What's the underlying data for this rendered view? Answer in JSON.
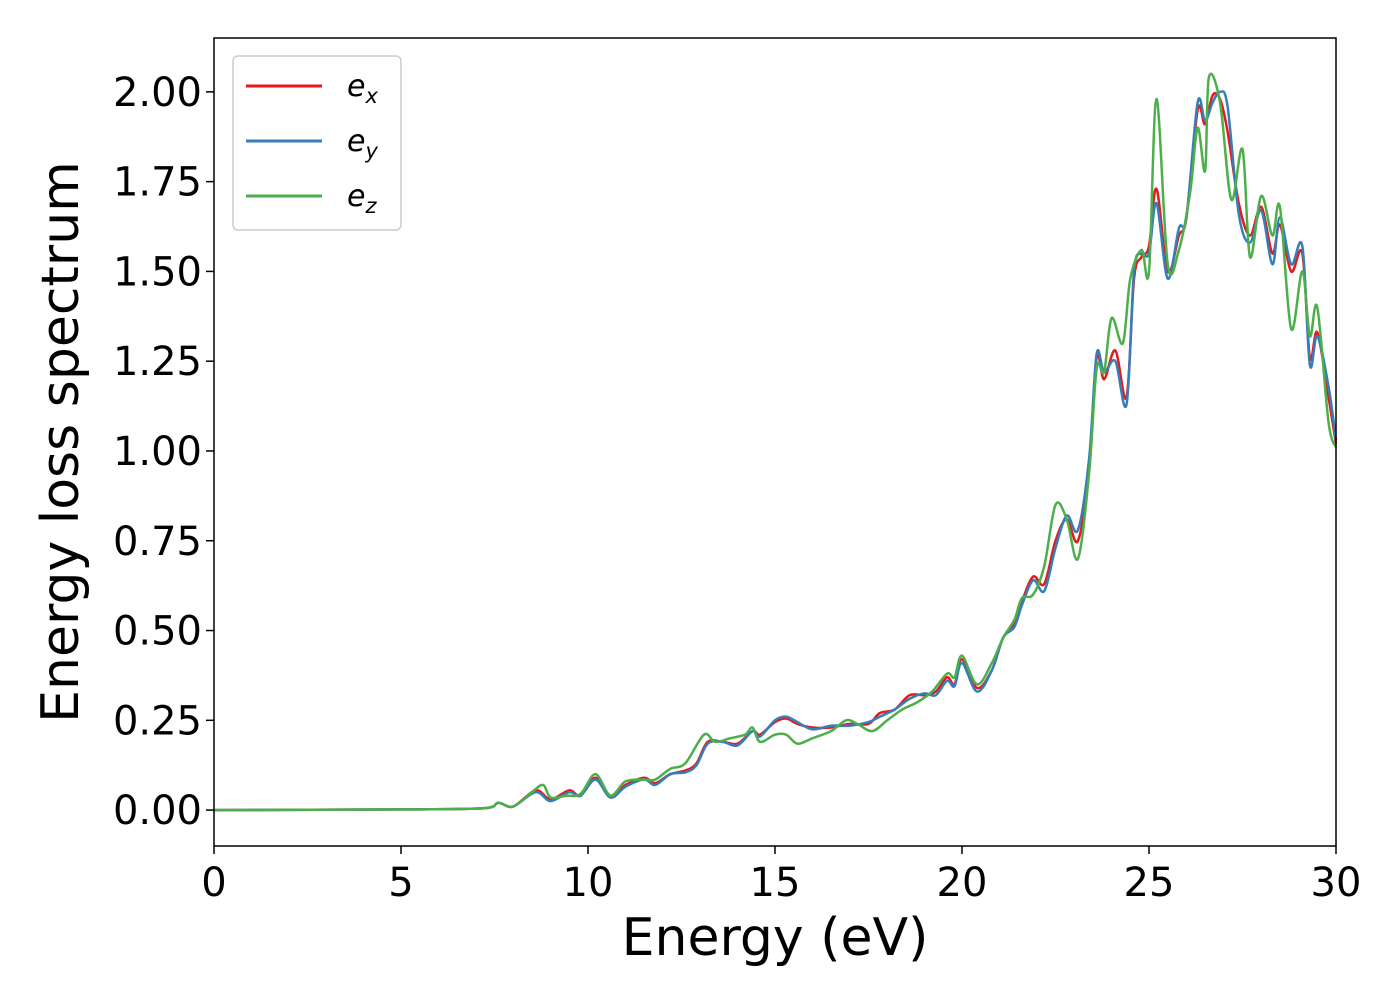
{
  "chart_data": {
    "type": "line",
    "xlabel": "Energy (eV)",
    "ylabel": "Energy loss spectrum",
    "xlim": [
      0,
      30
    ],
    "ylim": [
      -0.1,
      2.15
    ],
    "x_ticks": [
      "0",
      "5",
      "10",
      "15",
      "20",
      "25",
      "30"
    ],
    "y_ticks": [
      "0.00",
      "0.25",
      "0.50",
      "0.75",
      "1.00",
      "1.25",
      "1.50",
      "1.75",
      "2.00"
    ],
    "grid": false,
    "legend_position": "top-left",
    "series": [
      {
        "name": "e_x",
        "label_base": "e",
        "label_sub": "x",
        "color": "#e41a1c",
        "points": [
          [
            0,
            0
          ],
          [
            5,
            0.002
          ],
          [
            7.2,
            0.005
          ],
          [
            7.6,
            0.02
          ],
          [
            8.0,
            0.01
          ],
          [
            8.6,
            0.055
          ],
          [
            9.0,
            0.03
          ],
          [
            9.5,
            0.055
          ],
          [
            9.8,
            0.04
          ],
          [
            10.2,
            0.09
          ],
          [
            10.6,
            0.04
          ],
          [
            11.0,
            0.07
          ],
          [
            11.5,
            0.09
          ],
          [
            11.8,
            0.075
          ],
          [
            12.2,
            0.1
          ],
          [
            12.6,
            0.11
          ],
          [
            12.9,
            0.13
          ],
          [
            13.2,
            0.19
          ],
          [
            13.6,
            0.19
          ],
          [
            14.0,
            0.185
          ],
          [
            14.4,
            0.22
          ],
          [
            14.6,
            0.21
          ],
          [
            15.0,
            0.245
          ],
          [
            15.3,
            0.255
          ],
          [
            15.6,
            0.24
          ],
          [
            16.0,
            0.23
          ],
          [
            16.5,
            0.23
          ],
          [
            17.0,
            0.24
          ],
          [
            17.5,
            0.24
          ],
          [
            17.8,
            0.27
          ],
          [
            18.2,
            0.28
          ],
          [
            18.6,
            0.32
          ],
          [
            19.0,
            0.32
          ],
          [
            19.3,
            0.33
          ],
          [
            19.6,
            0.37
          ],
          [
            19.8,
            0.35
          ],
          [
            20.0,
            0.42
          ],
          [
            20.4,
            0.34
          ],
          [
            20.8,
            0.39
          ],
          [
            21.1,
            0.48
          ],
          [
            21.4,
            0.52
          ],
          [
            21.6,
            0.58
          ],
          [
            21.9,
            0.65
          ],
          [
            22.2,
            0.63
          ],
          [
            22.5,
            0.75
          ],
          [
            22.8,
            0.81
          ],
          [
            23.1,
            0.75
          ],
          [
            23.4,
            0.95
          ],
          [
            23.6,
            1.26
          ],
          [
            23.8,
            1.2
          ],
          [
            24.1,
            1.28
          ],
          [
            24.4,
            1.15
          ],
          [
            24.6,
            1.48
          ],
          [
            24.8,
            1.54
          ],
          [
            25.0,
            1.57
          ],
          [
            25.2,
            1.73
          ],
          [
            25.5,
            1.5
          ],
          [
            25.8,
            1.6
          ],
          [
            26.0,
            1.65
          ],
          [
            26.3,
            1.95
          ],
          [
            26.5,
            1.91
          ],
          [
            26.7,
            1.99
          ],
          [
            26.9,
            1.98
          ],
          [
            27.1,
            1.89
          ],
          [
            27.4,
            1.69
          ],
          [
            27.7,
            1.6
          ],
          [
            28.0,
            1.68
          ],
          [
            28.3,
            1.55
          ],
          [
            28.5,
            1.63
          ],
          [
            28.8,
            1.5
          ],
          [
            29.1,
            1.55
          ],
          [
            29.3,
            1.26
          ],
          [
            29.5,
            1.33
          ],
          [
            29.8,
            1.15
          ],
          [
            30.0,
            1.02
          ]
        ]
      },
      {
        "name": "e_y",
        "label_base": "e",
        "label_sub": "y",
        "color": "#377eb8",
        "points": [
          [
            0,
            0
          ],
          [
            5,
            0.002
          ],
          [
            7.2,
            0.005
          ],
          [
            7.6,
            0.02
          ],
          [
            8.0,
            0.01
          ],
          [
            8.6,
            0.05
          ],
          [
            9.0,
            0.025
          ],
          [
            9.5,
            0.05
          ],
          [
            9.8,
            0.04
          ],
          [
            10.2,
            0.085
          ],
          [
            10.6,
            0.035
          ],
          [
            11.0,
            0.065
          ],
          [
            11.5,
            0.085
          ],
          [
            11.8,
            0.07
          ],
          [
            12.2,
            0.1
          ],
          [
            12.6,
            0.105
          ],
          [
            12.9,
            0.125
          ],
          [
            13.2,
            0.185
          ],
          [
            13.6,
            0.19
          ],
          [
            14.0,
            0.18
          ],
          [
            14.4,
            0.22
          ],
          [
            14.6,
            0.205
          ],
          [
            15.0,
            0.25
          ],
          [
            15.3,
            0.26
          ],
          [
            15.6,
            0.245
          ],
          [
            16.0,
            0.225
          ],
          [
            16.5,
            0.235
          ],
          [
            17.0,
            0.235
          ],
          [
            17.5,
            0.245
          ],
          [
            17.8,
            0.26
          ],
          [
            18.2,
            0.28
          ],
          [
            18.6,
            0.31
          ],
          [
            19.0,
            0.325
          ],
          [
            19.3,
            0.32
          ],
          [
            19.6,
            0.36
          ],
          [
            19.8,
            0.345
          ],
          [
            20.0,
            0.41
          ],
          [
            20.4,
            0.33
          ],
          [
            20.8,
            0.39
          ],
          [
            21.1,
            0.48
          ],
          [
            21.4,
            0.51
          ],
          [
            21.6,
            0.57
          ],
          [
            21.9,
            0.64
          ],
          [
            22.2,
            0.61
          ],
          [
            22.5,
            0.73
          ],
          [
            22.8,
            0.82
          ],
          [
            23.1,
            0.78
          ],
          [
            23.4,
            0.98
          ],
          [
            23.6,
            1.27
          ],
          [
            23.8,
            1.22
          ],
          [
            24.1,
            1.25
          ],
          [
            24.4,
            1.13
          ],
          [
            24.6,
            1.5
          ],
          [
            24.8,
            1.55
          ],
          [
            25.0,
            1.55
          ],
          [
            25.2,
            1.69
          ],
          [
            25.5,
            1.48
          ],
          [
            25.8,
            1.62
          ],
          [
            26.0,
            1.65
          ],
          [
            26.3,
            1.97
          ],
          [
            26.5,
            1.92
          ],
          [
            26.7,
            1.97
          ],
          [
            26.9,
            2.0
          ],
          [
            27.1,
            1.96
          ],
          [
            27.4,
            1.66
          ],
          [
            27.7,
            1.58
          ],
          [
            28.0,
            1.67
          ],
          [
            28.3,
            1.52
          ],
          [
            28.5,
            1.65
          ],
          [
            28.8,
            1.52
          ],
          [
            29.1,
            1.57
          ],
          [
            29.3,
            1.24
          ],
          [
            29.5,
            1.32
          ],
          [
            29.8,
            1.18
          ],
          [
            30.0,
            1.03
          ]
        ]
      },
      {
        "name": "e_z",
        "label_base": "e",
        "label_sub": "z",
        "color": "#4daf4a",
        "points": [
          [
            0,
            0
          ],
          [
            5,
            0.002
          ],
          [
            7.2,
            0.005
          ],
          [
            7.6,
            0.02
          ],
          [
            8.0,
            0.01
          ],
          [
            8.5,
            0.05
          ],
          [
            8.8,
            0.07
          ],
          [
            9.0,
            0.035
          ],
          [
            9.4,
            0.04
          ],
          [
            9.8,
            0.045
          ],
          [
            10.2,
            0.1
          ],
          [
            10.6,
            0.04
          ],
          [
            11.0,
            0.08
          ],
          [
            11.5,
            0.085
          ],
          [
            11.8,
            0.085
          ],
          [
            12.2,
            0.115
          ],
          [
            12.6,
            0.13
          ],
          [
            13.1,
            0.21
          ],
          [
            13.4,
            0.19
          ],
          [
            13.8,
            0.2
          ],
          [
            14.2,
            0.21
          ],
          [
            14.4,
            0.23
          ],
          [
            14.6,
            0.19
          ],
          [
            15.0,
            0.21
          ],
          [
            15.3,
            0.21
          ],
          [
            15.6,
            0.185
          ],
          [
            16.0,
            0.2
          ],
          [
            16.5,
            0.22
          ],
          [
            16.9,
            0.25
          ],
          [
            17.2,
            0.24
          ],
          [
            17.6,
            0.22
          ],
          [
            18.0,
            0.25
          ],
          [
            18.4,
            0.28
          ],
          [
            18.8,
            0.3
          ],
          [
            19.2,
            0.33
          ],
          [
            19.6,
            0.38
          ],
          [
            19.8,
            0.37
          ],
          [
            20.0,
            0.43
          ],
          [
            20.4,
            0.35
          ],
          [
            20.8,
            0.41
          ],
          [
            21.1,
            0.48
          ],
          [
            21.4,
            0.53
          ],
          [
            21.6,
            0.59
          ],
          [
            21.9,
            0.6
          ],
          [
            22.2,
            0.68
          ],
          [
            22.5,
            0.85
          ],
          [
            22.8,
            0.81
          ],
          [
            23.1,
            0.7
          ],
          [
            23.4,
            0.94
          ],
          [
            23.6,
            1.23
          ],
          [
            23.8,
            1.22
          ],
          [
            24.0,
            1.37
          ],
          [
            24.3,
            1.3
          ],
          [
            24.5,
            1.48
          ],
          [
            24.8,
            1.56
          ],
          [
            25.0,
            1.5
          ],
          [
            25.2,
            1.98
          ],
          [
            25.5,
            1.52
          ],
          [
            25.8,
            1.56
          ],
          [
            26.1,
            1.72
          ],
          [
            26.3,
            1.9
          ],
          [
            26.5,
            1.78
          ],
          [
            26.6,
            2.04
          ],
          [
            26.9,
            1.97
          ],
          [
            27.2,
            1.7
          ],
          [
            27.5,
            1.84
          ],
          [
            27.7,
            1.54
          ],
          [
            28.0,
            1.71
          ],
          [
            28.3,
            1.6
          ],
          [
            28.5,
            1.68
          ],
          [
            28.8,
            1.34
          ],
          [
            29.1,
            1.5
          ],
          [
            29.3,
            1.32
          ],
          [
            29.5,
            1.4
          ],
          [
            29.8,
            1.08
          ],
          [
            30.0,
            1.01
          ]
        ]
      }
    ]
  }
}
